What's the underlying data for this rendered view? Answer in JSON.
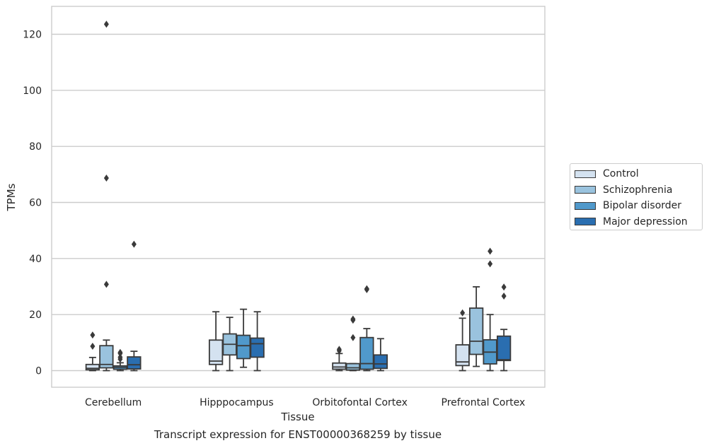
{
  "chart_data": {
    "type": "box",
    "title": "Transcript expression for ENST00000368259 by tissue",
    "xlabel": "Tissue",
    "ylabel": "TPMs",
    "ylim": [
      -6,
      130
    ],
    "yticks": [
      0,
      20,
      40,
      60,
      80,
      100,
      120
    ],
    "grid": true,
    "legend_placement": "center-right (outside)",
    "categories": [
      "Cerebellum",
      "Hipppocampus",
      "Orbitofontal Cortex",
      "Prefrontal Cortex"
    ],
    "series": [
      {
        "name": "Control",
        "color": "#d4e2f0",
        "boxes": [
          {
            "whislo": 0,
            "q1": 0.3,
            "med": 0.8,
            "q3": 2.2,
            "whishi": 4.7,
            "fliers": [
              8.7,
              12.7
            ]
          },
          {
            "whislo": 0,
            "q1": 2.2,
            "med": 3.4,
            "q3": 10.9,
            "whishi": 21.0,
            "fliers": []
          },
          {
            "whislo": 0,
            "q1": 0.5,
            "med": 1.3,
            "q3": 2.7,
            "whishi": 6.1,
            "fliers": [
              7.1,
              7.6
            ]
          },
          {
            "whislo": 0,
            "q1": 1.8,
            "med": 3.1,
            "q3": 9.2,
            "whishi": 18.7,
            "fliers": [
              20.6
            ]
          }
        ]
      },
      {
        "name": "Schizophrenia",
        "color": "#9ac3de",
        "boxes": [
          {
            "whislo": 0,
            "q1": 1.0,
            "med": 2.2,
            "q3": 8.9,
            "whishi": 10.9,
            "fliers": [
              30.8,
              68.7,
              123.6
            ]
          },
          {
            "whislo": 0,
            "q1": 5.6,
            "med": 9.4,
            "q3": 13.1,
            "whishi": 19.0,
            "fliers": []
          },
          {
            "whislo": 0,
            "q1": 0.2,
            "med": 1.0,
            "q3": 2.5,
            "whishi": 2.5,
            "fliers": [
              11.8,
              18.0,
              18.4
            ]
          },
          {
            "whislo": 1.5,
            "q1": 5.8,
            "med": 10.5,
            "q3": 22.3,
            "whishi": 29.9,
            "fliers": []
          }
        ]
      },
      {
        "name": "Bipolar disorder",
        "color": "#5099cb",
        "boxes": [
          {
            "whislo": 0,
            "q1": 0.5,
            "med": 1.2,
            "q3": 1.7,
            "whishi": 2.8,
            "fliers": [
              4.1,
              4.8,
              6.1,
              6.5
            ]
          },
          {
            "whislo": 1.2,
            "q1": 4.3,
            "med": 8.9,
            "q3": 12.6,
            "whishi": 21.9,
            "fliers": []
          },
          {
            "whislo": 0,
            "q1": 0.5,
            "med": 2.5,
            "q3": 11.8,
            "whishi": 15.0,
            "fliers": [
              28.9,
              29.2
            ]
          },
          {
            "whislo": 0,
            "q1": 2.4,
            "med": 6.6,
            "q3": 11.0,
            "whishi": 20.0,
            "fliers": [
              38.1,
              42.6
            ]
          }
        ]
      },
      {
        "name": "Major depression",
        "color": "#2a6eb0",
        "boxes": [
          {
            "whislo": 0,
            "q1": 0.6,
            "med": 2.1,
            "q3": 4.9,
            "whishi": 6.9,
            "fliers": [
              45.1
            ]
          },
          {
            "whislo": 0,
            "q1": 4.8,
            "med": 9.6,
            "q3": 11.6,
            "whishi": 21.0,
            "fliers": []
          },
          {
            "whislo": 0,
            "q1": 0.8,
            "med": 2.4,
            "q3": 5.6,
            "whishi": 11.4,
            "fliers": []
          },
          {
            "whislo": 0,
            "q1": 3.6,
            "med": 3.9,
            "q3": 12.3,
            "whishi": 14.7,
            "fliers": [
              26.6,
              29.8
            ]
          }
        ]
      }
    ]
  }
}
